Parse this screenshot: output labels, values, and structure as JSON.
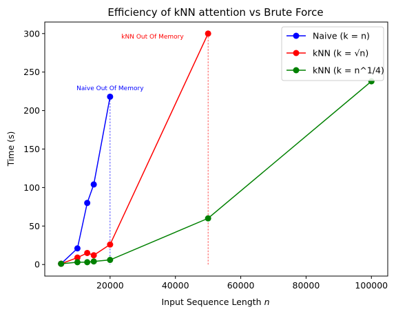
{
  "chart_data": {
    "type": "line",
    "title": "Efficiency of kNN attention vs Brute Force",
    "xlabel": "Input Sequence Length",
    "xlabel_var": "n",
    "ylabel": "Time (s)",
    "xlim": [
      0,
      105000
    ],
    "ylim": [
      -15,
      315
    ],
    "x_ticks": [
      20000,
      40000,
      60000,
      80000,
      100000
    ],
    "y_ticks": [
      0,
      50,
      100,
      150,
      200,
      250,
      300
    ],
    "grid": false,
    "legend_position": "upper-right",
    "series": [
      {
        "name": "Naive",
        "legend_expr": "(k = n)",
        "color": "#0000ff",
        "x": [
          5000,
          10000,
          13000,
          15000,
          20000
        ],
        "y": [
          1,
          21,
          80,
          104,
          218
        ]
      },
      {
        "name": "kNN",
        "legend_expr": "(k = √n)",
        "color": "#ff0000",
        "x": [
          5000,
          10000,
          13000,
          15000,
          20000,
          50000
        ],
        "y": [
          1,
          9,
          15,
          12,
          26,
          300
        ]
      },
      {
        "name": "kNN",
        "legend_expr": "(k = n^1/4)",
        "color": "#008000",
        "x": [
          5000,
          10000,
          13000,
          15000,
          20000,
          50000,
          100000
        ],
        "y": [
          1,
          3,
          3,
          4,
          6,
          60,
          238
        ]
      }
    ],
    "annotations": [
      {
        "text": "Naive Out Of Memory",
        "x": 20000,
        "y": 229,
        "color": "#0000ff",
        "vline_x": 20000,
        "vline_top": 218
      },
      {
        "text": "kNN Out Of Memory",
        "x": 33000,
        "y": 296,
        "color": "#ff0000",
        "vline_x": 50000,
        "vline_top": 300
      }
    ]
  }
}
